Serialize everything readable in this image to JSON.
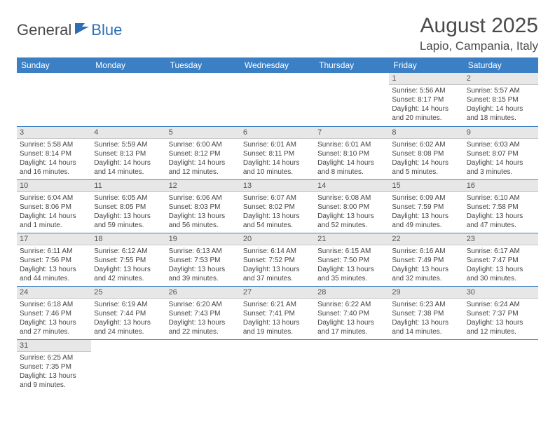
{
  "logo": {
    "text1": "General",
    "text2": "Blue"
  },
  "title": "August 2025",
  "location": "Lapio, Campania, Italy",
  "day_headers": [
    "Sunday",
    "Monday",
    "Tuesday",
    "Wednesday",
    "Thursday",
    "Friday",
    "Saturday"
  ],
  "colors": {
    "header_bg": "#3b7fc4",
    "header_fg": "#ffffff",
    "daynum_bg": "#e7e7e7",
    "row_divider": "#3b7fc4",
    "logo_blue": "#2d6fb4",
    "text": "#4a4a4a"
  },
  "weeks": [
    [
      null,
      null,
      null,
      null,
      null,
      {
        "n": "1",
        "sr": "Sunrise: 5:56 AM",
        "ss": "Sunset: 8:17 PM",
        "d1": "Daylight: 14 hours",
        "d2": "and 20 minutes."
      },
      {
        "n": "2",
        "sr": "Sunrise: 5:57 AM",
        "ss": "Sunset: 8:15 PM",
        "d1": "Daylight: 14 hours",
        "d2": "and 18 minutes."
      }
    ],
    [
      {
        "n": "3",
        "sr": "Sunrise: 5:58 AM",
        "ss": "Sunset: 8:14 PM",
        "d1": "Daylight: 14 hours",
        "d2": "and 16 minutes."
      },
      {
        "n": "4",
        "sr": "Sunrise: 5:59 AM",
        "ss": "Sunset: 8:13 PM",
        "d1": "Daylight: 14 hours",
        "d2": "and 14 minutes."
      },
      {
        "n": "5",
        "sr": "Sunrise: 6:00 AM",
        "ss": "Sunset: 8:12 PM",
        "d1": "Daylight: 14 hours",
        "d2": "and 12 minutes."
      },
      {
        "n": "6",
        "sr": "Sunrise: 6:01 AM",
        "ss": "Sunset: 8:11 PM",
        "d1": "Daylight: 14 hours",
        "d2": "and 10 minutes."
      },
      {
        "n": "7",
        "sr": "Sunrise: 6:01 AM",
        "ss": "Sunset: 8:10 PM",
        "d1": "Daylight: 14 hours",
        "d2": "and 8 minutes."
      },
      {
        "n": "8",
        "sr": "Sunrise: 6:02 AM",
        "ss": "Sunset: 8:08 PM",
        "d1": "Daylight: 14 hours",
        "d2": "and 5 minutes."
      },
      {
        "n": "9",
        "sr": "Sunrise: 6:03 AM",
        "ss": "Sunset: 8:07 PM",
        "d1": "Daylight: 14 hours",
        "d2": "and 3 minutes."
      }
    ],
    [
      {
        "n": "10",
        "sr": "Sunrise: 6:04 AM",
        "ss": "Sunset: 8:06 PM",
        "d1": "Daylight: 14 hours",
        "d2": "and 1 minute."
      },
      {
        "n": "11",
        "sr": "Sunrise: 6:05 AM",
        "ss": "Sunset: 8:05 PM",
        "d1": "Daylight: 13 hours",
        "d2": "and 59 minutes."
      },
      {
        "n": "12",
        "sr": "Sunrise: 6:06 AM",
        "ss": "Sunset: 8:03 PM",
        "d1": "Daylight: 13 hours",
        "d2": "and 56 minutes."
      },
      {
        "n": "13",
        "sr": "Sunrise: 6:07 AM",
        "ss": "Sunset: 8:02 PM",
        "d1": "Daylight: 13 hours",
        "d2": "and 54 minutes."
      },
      {
        "n": "14",
        "sr": "Sunrise: 6:08 AM",
        "ss": "Sunset: 8:00 PM",
        "d1": "Daylight: 13 hours",
        "d2": "and 52 minutes."
      },
      {
        "n": "15",
        "sr": "Sunrise: 6:09 AM",
        "ss": "Sunset: 7:59 PM",
        "d1": "Daylight: 13 hours",
        "d2": "and 49 minutes."
      },
      {
        "n": "16",
        "sr": "Sunrise: 6:10 AM",
        "ss": "Sunset: 7:58 PM",
        "d1": "Daylight: 13 hours",
        "d2": "and 47 minutes."
      }
    ],
    [
      {
        "n": "17",
        "sr": "Sunrise: 6:11 AM",
        "ss": "Sunset: 7:56 PM",
        "d1": "Daylight: 13 hours",
        "d2": "and 44 minutes."
      },
      {
        "n": "18",
        "sr": "Sunrise: 6:12 AM",
        "ss": "Sunset: 7:55 PM",
        "d1": "Daylight: 13 hours",
        "d2": "and 42 minutes."
      },
      {
        "n": "19",
        "sr": "Sunrise: 6:13 AM",
        "ss": "Sunset: 7:53 PM",
        "d1": "Daylight: 13 hours",
        "d2": "and 39 minutes."
      },
      {
        "n": "20",
        "sr": "Sunrise: 6:14 AM",
        "ss": "Sunset: 7:52 PM",
        "d1": "Daylight: 13 hours",
        "d2": "and 37 minutes."
      },
      {
        "n": "21",
        "sr": "Sunrise: 6:15 AM",
        "ss": "Sunset: 7:50 PM",
        "d1": "Daylight: 13 hours",
        "d2": "and 35 minutes."
      },
      {
        "n": "22",
        "sr": "Sunrise: 6:16 AM",
        "ss": "Sunset: 7:49 PM",
        "d1": "Daylight: 13 hours",
        "d2": "and 32 minutes."
      },
      {
        "n": "23",
        "sr": "Sunrise: 6:17 AM",
        "ss": "Sunset: 7:47 PM",
        "d1": "Daylight: 13 hours",
        "d2": "and 30 minutes."
      }
    ],
    [
      {
        "n": "24",
        "sr": "Sunrise: 6:18 AM",
        "ss": "Sunset: 7:46 PM",
        "d1": "Daylight: 13 hours",
        "d2": "and 27 minutes."
      },
      {
        "n": "25",
        "sr": "Sunrise: 6:19 AM",
        "ss": "Sunset: 7:44 PM",
        "d1": "Daylight: 13 hours",
        "d2": "and 24 minutes."
      },
      {
        "n": "26",
        "sr": "Sunrise: 6:20 AM",
        "ss": "Sunset: 7:43 PM",
        "d1": "Daylight: 13 hours",
        "d2": "and 22 minutes."
      },
      {
        "n": "27",
        "sr": "Sunrise: 6:21 AM",
        "ss": "Sunset: 7:41 PM",
        "d1": "Daylight: 13 hours",
        "d2": "and 19 minutes."
      },
      {
        "n": "28",
        "sr": "Sunrise: 6:22 AM",
        "ss": "Sunset: 7:40 PM",
        "d1": "Daylight: 13 hours",
        "d2": "and 17 minutes."
      },
      {
        "n": "29",
        "sr": "Sunrise: 6:23 AM",
        "ss": "Sunset: 7:38 PM",
        "d1": "Daylight: 13 hours",
        "d2": "and 14 minutes."
      },
      {
        "n": "30",
        "sr": "Sunrise: 6:24 AM",
        "ss": "Sunset: 7:37 PM",
        "d1": "Daylight: 13 hours",
        "d2": "and 12 minutes."
      }
    ],
    [
      {
        "n": "31",
        "sr": "Sunrise: 6:25 AM",
        "ss": "Sunset: 7:35 PM",
        "d1": "Daylight: 13 hours",
        "d2": "and 9 minutes."
      },
      null,
      null,
      null,
      null,
      null,
      null
    ]
  ]
}
